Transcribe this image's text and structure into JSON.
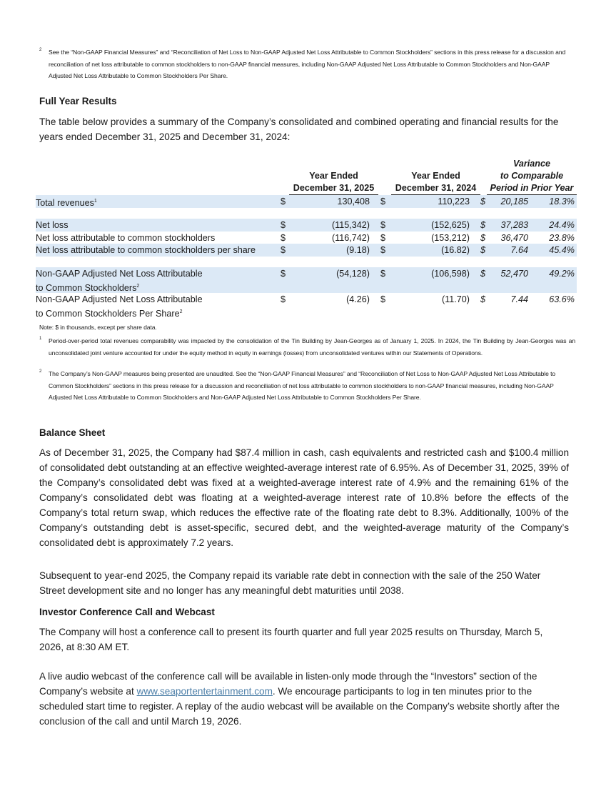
{
  "top_footnote": {
    "marker": "2",
    "text": "See the “Non-GAAP Financial Measures” and “Reconciliation of Net Loss to Non-GAAP Adjusted Net Loss Attributable to Common Stockholders” sections in this press release for a discussion and reconciliation of net loss attributable to common stockholders to non-GAAP financial measures, including Non-GAAP Adjusted Net Loss Attributable to Common Stockholders and Non-GAAP Adjusted Net Loss Attributable to Common Stockholders Per Share."
  },
  "full_year": {
    "heading": "Full Year Results",
    "intro": "The table below provides a summary of the Company’s consolidated and combined operating and financial results for the years ended December 31, 2025 and December 31, 2024:"
  },
  "table": {
    "headers": {
      "col1": [
        "Year Ended",
        "December 31, 2025"
      ],
      "col2": [
        "Year Ended",
        "December 31, 2024"
      ],
      "variance": [
        "Variance",
        "to Comparable",
        "Period in Prior Year"
      ]
    },
    "rows": [
      {
        "label": [
          "Total revenues"
        ],
        "sup": "1",
        "c1": "$",
        "v1": "130,408",
        "c2": "$",
        "v2": "110,223",
        "c3": "$",
        "var": "20,185",
        "pct": "18.3%",
        "shade": true
      },
      {
        "label": [
          "Net loss"
        ],
        "sup": "",
        "c1": "$",
        "v1": "(115,342)",
        "c2": "$",
        "v2": "(152,625)",
        "c3": "$",
        "var": "37,283",
        "pct": "24.4%",
        "shade": true
      },
      {
        "label": [
          "Net loss attributable to common stockholders"
        ],
        "sup": "",
        "c1": "$",
        "v1": "(116,742)",
        "c2": "$",
        "v2": "(153,212)",
        "c3": "$",
        "var": "36,470",
        "pct": "23.8%",
        "shade": false
      },
      {
        "label": [
          "Net loss attributable to common stockholders per share"
        ],
        "sup": "",
        "c1": "$",
        "v1": "(9.18)",
        "c2": "$",
        "v2": "(16.82)",
        "c3": "$",
        "var": "7.64",
        "pct": "45.4%",
        "shade": true
      },
      {
        "label": [
          "Non-GAAP Adjusted Net Loss Attributable",
          "to Common Stockholders"
        ],
        "sup": "2",
        "c1": "$",
        "v1": "(54,128)",
        "c2": "$",
        "v2": "(106,598)",
        "c3": "$",
        "var": "52,470",
        "pct": "49.2%",
        "shade": true
      },
      {
        "label": [
          "Non-GAAP Adjusted Net Loss Attributable",
          "to Common Stockholders Per Share"
        ],
        "sup": "2",
        "c1": "$",
        "v1": "(4.26)",
        "c2": "$",
        "v2": "(11.70)",
        "c3": "$",
        "var": "7.44",
        "pct": "63.6%",
        "shade": false
      }
    ]
  },
  "table_notes": {
    "note": "Note: $ in thousands, except per share data.",
    "footnotes": [
      {
        "marker": "1",
        "text": "Period-over-period total revenues comparability was impacted by the consolidation of the Tin Building by Jean-Georges as of January 1, 2025. In 2024, the Tin Building by Jean-Georges was an unconsolidated joint venture accounted for under the equity method in equity in earnings (losses) from unconsolidated ventures within our Statements of Operations."
      },
      {
        "marker": "2",
        "text": "The Company’s Non-GAAP measures being presented are unaudited. See the “Non-GAAP Financial Measures” and “Reconciliation of Net Loss to Non-GAAP Adjusted Net Loss Attributable to Common Stockholders” sections in this press release for a discussion and reconciliation of net loss attributable to common stockholders to non-GAAP financial measures, including Non-GAAP Adjusted Net Loss Attributable to Common Stockholders and Non-GAAP Adjusted Net Loss Attributable to Common Stockholders Per Share."
      }
    ]
  },
  "balance_sheet": {
    "heading": "Balance Sheet",
    "para1": "As of December 31, 2025, the Company had $87.4 million in cash, cash equivalents and restricted cash and $100.4 million of consolidated debt outstanding at an effective weighted-average interest rate of 6.95%. As of December 31, 2025, 39% of the Company’s consolidated debt was fixed at a weighted-average interest rate of 4.9% and the remaining 61% of the Company’s consolidated debt was floating at a weighted-average interest rate of 10.8% before the effects of the Company’s total return swap, which reduces the effective rate of the floating rate debt to 8.3%. Additionally, 100% of the Company’s outstanding debt is asset-specific, secured debt, and the weighted-average maturity of the Company’s consolidated debt is approximately 7.2 years.",
    "para2": "Subsequent to year-end 2025, the Company repaid its variable rate debt in connection with the sale of the 250 Water Street development site and no longer has any meaningful debt maturities until 2038."
  },
  "conference": {
    "heading": "Investor Conference Call and Webcast",
    "para1": "The Company will host a conference call to present its fourth quarter and full year 2025 results on Thursday, March 5, 2026, at 8:30 AM ET.",
    "para2_before": "A live audio webcast of the conference call will be available in listen-only mode through the “Investors” section of the Company’s website at ",
    "link": "www.seaportentertainment.com",
    "para2_after": ". We encourage participants to log in ten minutes prior to the scheduled start time to register. A replay of the audio webcast will be available on the Company’s website shortly after the conclusion of the call and until March 19, 2026.",
    "link_color": "#4d7fa8"
  },
  "colors": {
    "row_shade": "#dce9f6"
  }
}
